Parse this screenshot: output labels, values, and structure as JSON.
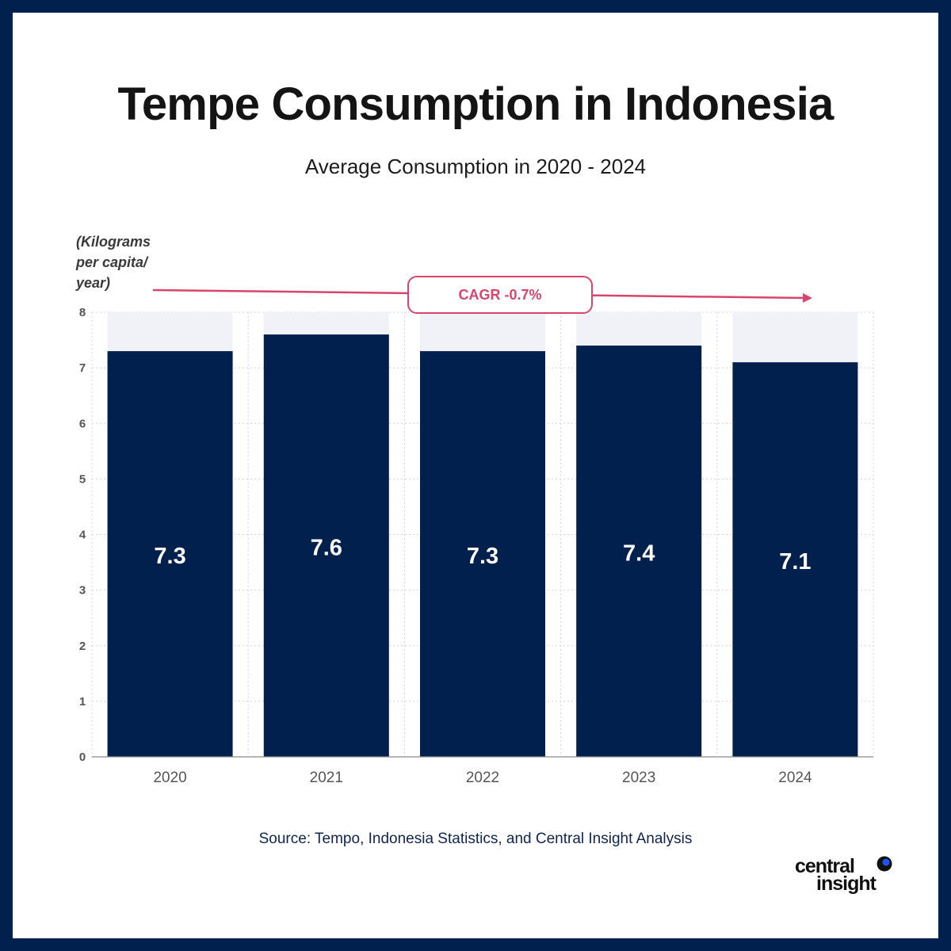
{
  "title": "Tempe Consumption in Indonesia",
  "subtitle": "Average Consumption in 2020 - 2024",
  "unit_label": "(Kilograms\nper capita/\nyear)",
  "annotation": {
    "text": "CAGR -0.7%",
    "color": "#d9456a"
  },
  "source": "Source: Tempo, Indonesia Statistics, and Central Insight Analysis",
  "logo": {
    "line1": "central",
    "line2": "insight",
    "accent": "#1a56f0"
  },
  "colors": {
    "frame": "#02204d",
    "bar": "#02204d",
    "bar_background": "#f1f2f7",
    "value_label": "#ffffff",
    "axis_text": "#555555"
  },
  "chart_data": {
    "type": "bar",
    "categories": [
      "2020",
      "2021",
      "2022",
      "2023",
      "2024"
    ],
    "values": [
      7.3,
      7.6,
      7.3,
      7.4,
      7.1
    ],
    "value_labels": [
      "7.3",
      "7.6",
      "7.3",
      "7.4",
      "7.1"
    ],
    "ylim": [
      0,
      8
    ],
    "yticks": [
      0,
      1,
      2,
      3,
      4,
      5,
      6,
      7,
      8
    ],
    "grid": true,
    "xlabel": "",
    "ylabel": "(Kilograms per capita/ year)",
    "annotations": [
      "CAGR -0.7%"
    ]
  }
}
